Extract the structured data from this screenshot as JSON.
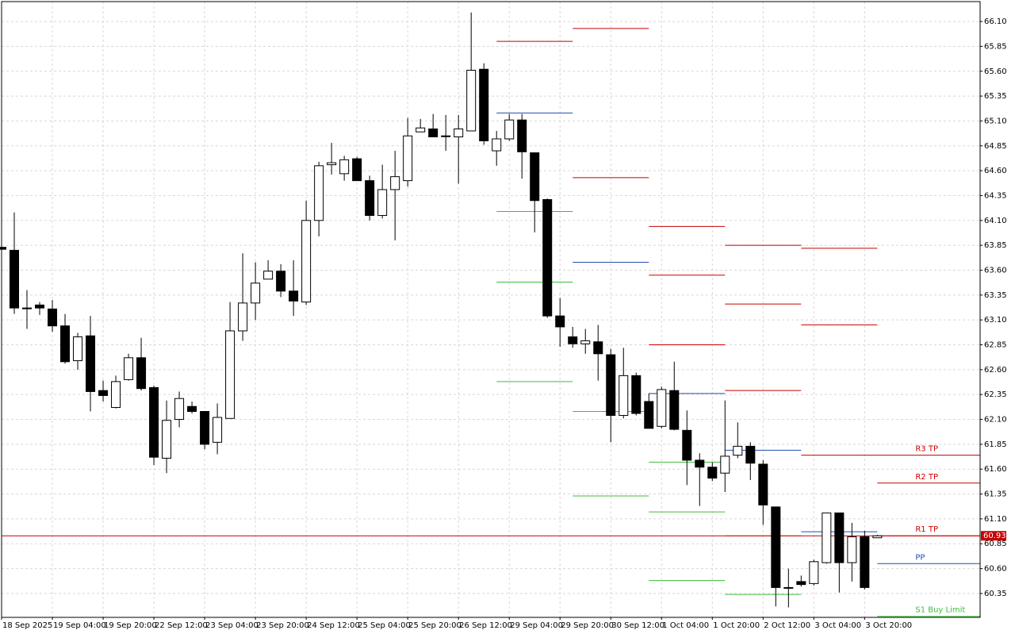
{
  "chart_data": {
    "type": "candlestick",
    "categories": [
      "18 Sep 2025",
      null,
      null,
      null,
      "19 Sep 04:00",
      null,
      null,
      null,
      "19 Sep 20:00",
      null,
      null,
      null,
      "22 Sep 12:00",
      null,
      null,
      null,
      "23 Sep 04:00",
      null,
      null,
      null,
      "23 Sep 20:00",
      null,
      null,
      null,
      "24 Sep 12:00",
      null,
      null,
      null,
      "25 Sep 04:00",
      null,
      null,
      null,
      "25 Sep 20:00",
      null,
      null,
      null,
      "26 Sep 12:00",
      null,
      null,
      null,
      "29 Sep 04:00",
      null,
      null,
      null,
      "29 Sep 20:00",
      null,
      null,
      null,
      "30 Sep 12:00",
      null,
      null,
      null,
      "1 Oct 04:00",
      null,
      null,
      null,
      "1 Oct 20:00",
      null,
      null,
      null,
      "2 Oct 12:00",
      null,
      null,
      null,
      "3 Oct 04:00",
      null,
      null,
      null,
      "3 Oct 20:00",
      null
    ],
    "open": [
      63.83,
      63.8,
      63.22,
      63.25,
      63.21,
      63.04,
      62.69,
      62.94,
      62.39,
      62.22,
      62.5,
      62.72,
      62.42,
      61.71,
      62.1,
      62.23,
      62.18,
      61.87,
      62.11,
      62.99,
      63.27,
      63.51,
      63.59,
      63.39,
      63.28,
      64.1,
      64.66,
      64.57,
      64.72,
      64.5,
      64.15,
      64.41,
      64.5,
      64.99,
      65.02,
      64.95,
      64.94,
      65.0,
      65.62,
      64.8,
      64.92,
      65.11,
      64.78,
      64.31,
      63.14,
      62.93,
      62.86,
      62.88,
      62.75,
      62.14,
      62.54,
      62.28,
      62.03,
      62.39,
      61.99,
      61.69,
      61.62,
      61.56,
      61.74,
      61.83,
      61.65,
      61.22,
      60.41,
      60.47,
      60.45,
      60.66,
      61.16,
      60.66,
      60.92,
      60.91
    ],
    "high": [
      63.83,
      64.18,
      63.4,
      63.28,
      63.3,
      63.16,
      62.97,
      63.14,
      62.49,
      62.54,
      62.76,
      62.92,
      62.44,
      62.29,
      62.38,
      62.28,
      62.18,
      62.26,
      63.28,
      63.77,
      63.68,
      63.7,
      63.66,
      63.7,
      64.3,
      64.69,
      64.88,
      64.75,
      64.74,
      64.55,
      64.66,
      64.8,
      65.13,
      65.12,
      65.17,
      65.16,
      65.16,
      66.19,
      65.68,
      65.0,
      65.17,
      65.17,
      64.78,
      64.32,
      63.32,
      63.03,
      63.01,
      63.05,
      62.81,
      62.82,
      62.57,
      62.36,
      62.43,
      62.68,
      62.19,
      61.76,
      61.67,
      62.29,
      62.07,
      61.87,
      61.69,
      61.22,
      60.6,
      60.53,
      60.69,
      61.16,
      61.16,
      61.06,
      60.98,
      60.94
    ],
    "low": [
      63.8,
      63.16,
      63.01,
      63.15,
      62.98,
      62.66,
      62.6,
      62.18,
      62.28,
      62.21,
      62.49,
      62.39,
      61.64,
      61.56,
      62.02,
      62.16,
      61.8,
      61.75,
      62.11,
      62.89,
      63.1,
      63.51,
      63.33,
      63.14,
      63.25,
      63.94,
      64.56,
      64.5,
      64.5,
      64.1,
      64.12,
      63.9,
      64.44,
      64.99,
      64.94,
      64.8,
      64.47,
      65.0,
      64.86,
      64.65,
      64.9,
      64.52,
      63.98,
      63.12,
      62.83,
      62.82,
      62.76,
      62.49,
      61.87,
      62.11,
      62.14,
      62.01,
      62.01,
      61.99,
      61.44,
      61.23,
      61.48,
      61.37,
      61.71,
      61.49,
      61.04,
      60.22,
      60.21,
      60.42,
      60.43,
      60.65,
      60.36,
      60.47,
      60.39,
      60.91
    ],
    "close": [
      63.81,
      63.22,
      63.22,
      63.22,
      63.04,
      62.68,
      62.93,
      62.38,
      62.34,
      62.48,
      62.72,
      62.41,
      61.72,
      62.09,
      62.31,
      62.18,
      61.85,
      62.12,
      62.99,
      63.27,
      63.47,
      63.59,
      63.39,
      63.29,
      64.1,
      64.65,
      64.68,
      64.71,
      64.5,
      64.15,
      64.41,
      64.54,
      64.95,
      65.03,
      64.94,
      64.95,
      65.02,
      65.61,
      64.9,
      64.92,
      65.11,
      64.79,
      64.3,
      63.14,
      63.03,
      62.86,
      62.89,
      62.76,
      62.14,
      62.54,
      62.16,
      62.01,
      62.4,
      62.0,
      61.69,
      61.62,
      61.51,
      61.73,
      61.83,
      61.66,
      61.24,
      60.41,
      60.41,
      60.44,
      60.67,
      61.16,
      60.66,
      60.92,
      60.41,
      60.93
    ],
    "up_color": "#ffffff",
    "down_color": "#000000",
    "xlim": [
      0,
      77.1
    ],
    "ylim": [
      60.11,
      66.3
    ],
    "yticks": [
      {
        "value": 66.1,
        "label": "66.10"
      },
      65.85,
      {
        "value": 65.6,
        "label": "65.60"
      },
      65.35,
      {
        "value": 65.1,
        "label": "65.10"
      },
      64.85,
      {
        "value": 64.6,
        "label": "64.60"
      },
      64.35,
      {
        "value": 64.1,
        "label": "64.10"
      },
      63.85,
      {
        "value": 63.6,
        "label": "63.60"
      },
      63.35,
      {
        "value": 63.1,
        "label": "63.10"
      },
      62.85,
      {
        "value": 62.6,
        "label": "62.60"
      },
      62.35,
      {
        "value": 62.1,
        "label": "62.10"
      },
      61.85,
      {
        "value": 61.6,
        "label": "61.60"
      },
      61.35,
      {
        "value": 61.1,
        "label": "61.10"
      },
      60.85,
      {
        "value": 60.6,
        "label": "60.60"
      },
      60.35
    ],
    "grid": true,
    "current_price": 60.93,
    "current_price_color": "#c80000",
    "pivot_periods": [
      {
        "x": [
          39,
          45
        ],
        "levels": [
          {
            "value": 65.9,
            "color": "#c80000"
          },
          {
            "value": 65.18,
            "color": "#1f4fb0"
          },
          {
            "value": 64.19,
            "color": "#3cbd3c"
          },
          {
            "value": 63.48,
            "color": "#3cbd3c"
          },
          {
            "value": 62.48,
            "color": "#3cbd3c"
          }
        ]
      },
      {
        "x": [
          45,
          51
        ],
        "levels": [
          {
            "value": 66.03,
            "color": "#c80000"
          },
          {
            "value": 64.53,
            "color": "#c80000"
          },
          {
            "value": 63.68,
            "color": "#1f4fb0"
          },
          {
            "value": 62.18,
            "color": "#3cbd3c"
          },
          {
            "value": 61.33,
            "color": "#3cbd3c"
          }
        ]
      },
      {
        "x": [
          51,
          57
        ],
        "levels": [
          {
            "value": 64.04,
            "color": "#c80000"
          },
          {
            "value": 63.55,
            "color": "#c80000"
          },
          {
            "value": 62.85,
            "color": "#c80000"
          },
          {
            "value": 62.36,
            "color": "#1f4fb0"
          },
          {
            "value": 61.67,
            "color": "#3cbd3c"
          },
          {
            "value": 61.17,
            "color": "#3cbd3c"
          },
          {
            "value": 60.48,
            "color": "#3cbd3c"
          }
        ]
      },
      {
        "x": [
          57,
          63
        ],
        "levels": [
          {
            "value": 63.85,
            "color": "#c80000"
          },
          {
            "value": 63.26,
            "color": "#c80000"
          },
          {
            "value": 62.39,
            "color": "#c80000"
          },
          {
            "value": 61.79,
            "color": "#1f4fb0"
          },
          {
            "value": 60.93,
            "color": "#3cbd3c"
          },
          {
            "value": 60.34,
            "color": "#3cbd3c"
          }
        ]
      },
      {
        "x": [
          63,
          69
        ],
        "levels": [
          {
            "value": 63.82,
            "color": "#c80000"
          },
          {
            "value": 63.05,
            "color": "#c80000"
          },
          {
            "value": 61.74,
            "color": "#c80000"
          },
          {
            "value": 60.97,
            "color": "#1f4fb0"
          }
        ]
      },
      {
        "x": [
          69,
          77.1
        ],
        "levels": [
          {
            "value": 61.74,
            "color": "#c80000",
            "label": "R3 TP"
          },
          {
            "value": 61.46,
            "color": "#c80000",
            "label": "R2 TP"
          },
          {
            "value": 60.93,
            "color": "#c80000",
            "label": "R1 TP"
          },
          {
            "value": 60.65,
            "color": "#1f4fb0",
            "label": "PP"
          },
          {
            "value": 60.12,
            "color": "#3cbd3c",
            "label": "S1 Buy Limit"
          }
        ]
      }
    ]
  }
}
